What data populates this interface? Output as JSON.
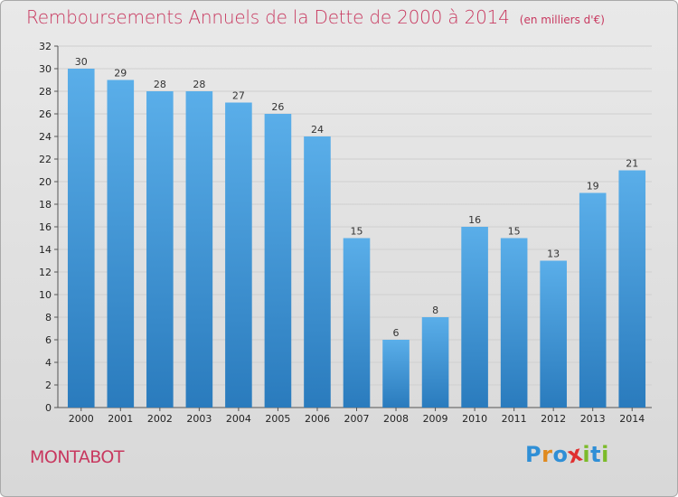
{
  "title": "Remboursements Annuels de la Dette de 2000 à 2014",
  "unit": "(en milliers d'€)",
  "city": "MONTABOT",
  "logo": {
    "letters": [
      "P",
      "r",
      "o",
      "x",
      "i",
      "t",
      "i"
    ],
    "colors": [
      "#2f8fd6",
      "#e08a1e",
      "#2f8fd6",
      "#e02f2f",
      "#7cbb2a",
      "#2f8fd6",
      "#7cbb2a"
    ]
  },
  "colors": {
    "title": "#c8385f",
    "bar_top": "#5aaee9",
    "bar_bottom": "#2a7bbd",
    "grid": "#cfcfcf"
  },
  "chart_data": {
    "type": "bar",
    "categories": [
      "2000",
      "2001",
      "2002",
      "2003",
      "2004",
      "2005",
      "2006",
      "2007",
      "2008",
      "2009",
      "2010",
      "2011",
      "2012",
      "2013",
      "2014"
    ],
    "values": [
      30,
      29,
      28,
      28,
      27,
      26,
      24,
      15,
      6,
      8,
      16,
      15,
      13,
      19,
      21
    ],
    "ylim": [
      0,
      32
    ],
    "yticks": [
      0,
      2,
      4,
      6,
      8,
      10,
      12,
      14,
      16,
      18,
      20,
      22,
      24,
      26,
      28,
      30,
      32
    ],
    "grid": true,
    "data_labels": true
  }
}
